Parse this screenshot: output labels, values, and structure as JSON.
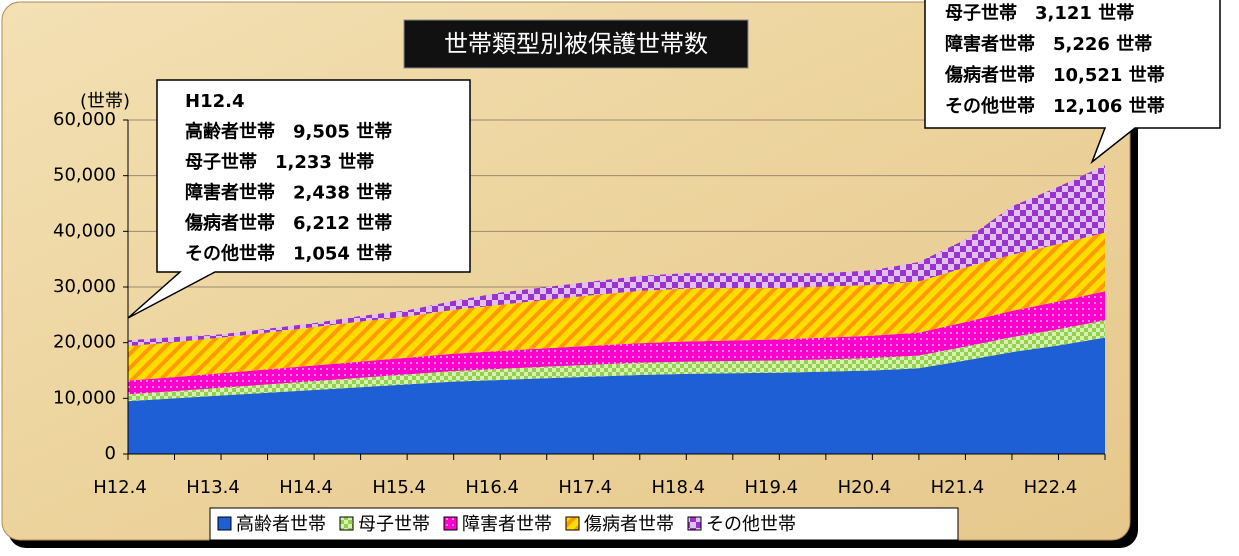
{
  "chart_data": {
    "type": "stacked-area",
    "title": "世帯類型別被保護世帯数",
    "y_axis_label": "(世帯)",
    "categories": [
      "H12.4",
      null,
      "H13.4",
      null,
      "H14.4",
      null,
      "H15.4",
      null,
      "H16.4",
      null,
      "H17.4",
      null,
      "H18.4",
      null,
      "H19.4",
      null,
      "H20.4",
      null,
      "H21.4",
      null,
      "H22.4",
      null
    ],
    "series": [
      {
        "name": "高齢者世帯",
        "color": "#1f5fd6",
        "values": [
          9505,
          10000,
          10500,
          11000,
          11500,
          12000,
          12500,
          13000,
          13300,
          13600,
          13900,
          14200,
          14400,
          14500,
          14600,
          14800,
          15000,
          15400,
          16800,
          18300,
          19500,
          20900
        ]
      },
      {
        "name": "母子世帯",
        "color": "#92d050",
        "values": [
          1233,
          1300,
          1400,
          1500,
          1600,
          1700,
          1800,
          1900,
          2000,
          2100,
          2150,
          2200,
          2200,
          2200,
          2200,
          2200,
          2250,
          2300,
          2500,
          2700,
          2900,
          3121
        ]
      },
      {
        "name": "障害者世帯",
        "color": "#ff00cc",
        "values": [
          2438,
          2500,
          2600,
          2700,
          2800,
          2900,
          3000,
          3100,
          3200,
          3300,
          3400,
          3500,
          3600,
          3700,
          3800,
          3900,
          4000,
          4100,
          4400,
          4700,
          5000,
          5226
        ]
      },
      {
        "name": "傷病者世帯",
        "color": "#ffcc00",
        "values": [
          6212,
          6300,
          6400,
          6600,
          6900,
          7200,
          7400,
          7900,
          8300,
          8700,
          9100,
          9400,
          9500,
          9400,
          9200,
          9200,
          9100,
          9200,
          9800,
          10100,
          10300,
          10521
        ]
      },
      {
        "name": "その他世帯",
        "color": "#9933cc",
        "values": [
          1054,
          900,
          600,
          700,
          700,
          1000,
          1100,
          1600,
          2200,
          2300,
          2450,
          2700,
          2800,
          2700,
          2700,
          2400,
          2650,
          3500,
          5000,
          8700,
          10300,
          12106
        ]
      }
    ],
    "ylim": [
      0,
      60000
    ],
    "yticks": [
      0,
      {
        "value": 10000,
        "label": "10,000"
      },
      {
        "value": 20000,
        "label": "20,000"
      },
      {
        "value": 30000,
        "label": "30,000"
      },
      {
        "value": 40000,
        "label": "40,000"
      },
      {
        "value": 50000,
        "label": "50,000"
      },
      {
        "value": 60000,
        "label": "60,000"
      }
    ],
    "grid": true,
    "legend": "bottom",
    "annotations": [
      {
        "lines": [
          "H12.4",
          "高齢者世帯　9,505 世帯",
          "母子世帯　1,233 世帯",
          "障害者世帯　2,438 世帯",
          "傷病者世帯　6,212 世帯",
          "その他世帯　1,054 世帯"
        ]
      },
      {
        "lines": [
          "母子世帯　3,121 世帯",
          "障害者世帯　5,226 世帯",
          "傷病者世帯　10,521 世帯",
          "その他世帯　12,106 世帯"
        ]
      }
    ]
  }
}
